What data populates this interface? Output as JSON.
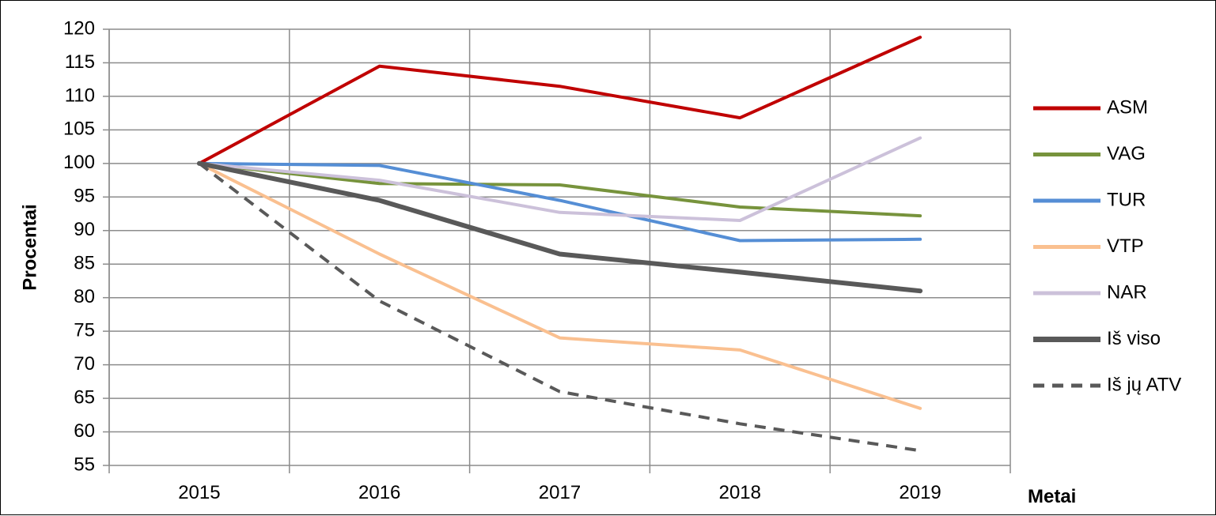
{
  "chart_data": {
    "type": "line",
    "title": "",
    "xlabel": "Metai",
    "ylabel": "Procentai",
    "x": [
      "2015",
      "2016",
      "2017",
      "2018",
      "2019"
    ],
    "ylim": [
      55,
      120
    ],
    "yticks": [
      55,
      60,
      65,
      70,
      75,
      80,
      85,
      90,
      95,
      100,
      105,
      110,
      115,
      120
    ],
    "grid": true,
    "legend": "right",
    "series": [
      {
        "name": "ASM",
        "values": [
          100,
          114.5,
          111.5,
          106.8,
          118.8
        ],
        "color": "#C00000",
        "dashed": false,
        "width": 4
      },
      {
        "name": "VAG",
        "values": [
          100,
          97,
          96.8,
          93.5,
          92.2
        ],
        "color": "#77933C",
        "dashed": false,
        "width": 4
      },
      {
        "name": "TUR",
        "values": [
          100,
          99.7,
          94.5,
          88.5,
          88.7
        ],
        "color": "#558ED5",
        "dashed": false,
        "width": 4
      },
      {
        "name": "VTP",
        "values": [
          100,
          86.5,
          74,
          72.2,
          63.5
        ],
        "color": "#FAC090",
        "dashed": false,
        "width": 4
      },
      {
        "name": "NAR",
        "values": [
          100,
          97.5,
          92.7,
          91.5,
          103.8
        ],
        "color": "#CCC1DA",
        "dashed": false,
        "width": 4
      },
      {
        "name": "Iš viso",
        "values": [
          100,
          94.5,
          86.5,
          83.8,
          81
        ],
        "color": "#595959",
        "dashed": false,
        "width": 6
      },
      {
        "name": "Iš jų ATV",
        "values": [
          100,
          79.5,
          66,
          61.2,
          57.2
        ],
        "color": "#595959",
        "dashed": true,
        "width": 4
      }
    ]
  }
}
